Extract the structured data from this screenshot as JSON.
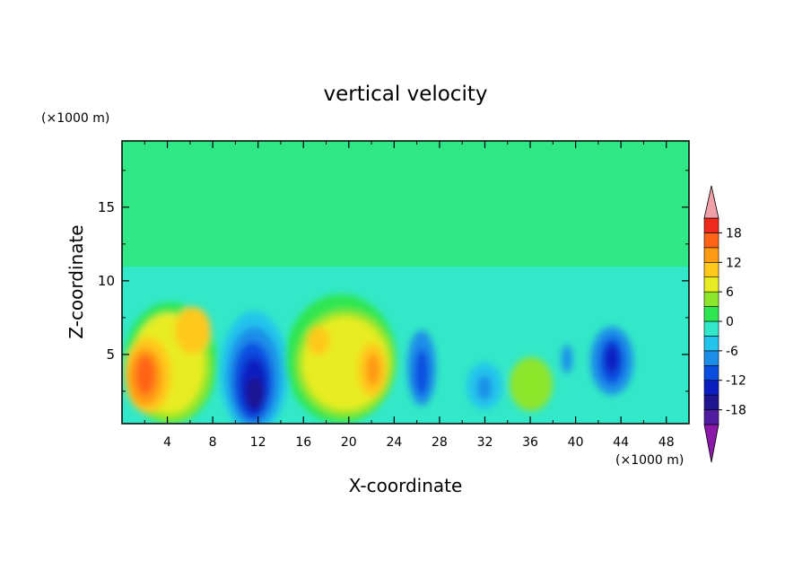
{
  "chart_data": {
    "type": "heatmap",
    "title": "vertical velocity",
    "xlabel": "X-coordinate",
    "ylabel": "Z-coordinate",
    "x_unit": "(×1000 m)",
    "y_unit": "(×1000 m)",
    "xlim": [
      0,
      50
    ],
    "ylim": [
      0.3,
      19.5
    ],
    "x_ticks": [
      4,
      8,
      12,
      16,
      20,
      24,
      28,
      32,
      36,
      40,
      44,
      48
    ],
    "y_ticks": [
      5,
      10,
      15
    ],
    "colorbar": {
      "levels": [
        -21,
        -18,
        -15,
        -12,
        -9,
        -6,
        -3,
        0,
        3,
        6,
        9,
        12,
        15,
        18,
        21
      ],
      "tick_labels": [
        "-18",
        "-12",
        "-6",
        "0",
        "6",
        "12",
        "18"
      ],
      "tick_values": [
        -18,
        -12,
        -6,
        0,
        6,
        12,
        18
      ],
      "colors": [
        "#8b1aa8",
        "#4f1ca0",
        "#1f1590",
        "#0a1ec0",
        "#0a4ee0",
        "#1c8ee8",
        "#22c4ec",
        "#33e8c8",
        "#2ee650",
        "#8ee62c",
        "#e8ec22",
        "#ffc81a",
        "#ff9a14",
        "#ff6418",
        "#ee2a1c",
        "#f0a0a8"
      ],
      "extend": "both"
    },
    "features": [
      {
        "x": 2.2,
        "z": 4.0,
        "value": 15
      },
      {
        "x": 5.5,
        "z": 6.3,
        "value": 8
      },
      {
        "x": 11.5,
        "z": 3.0,
        "value": -17
      },
      {
        "x": 10.5,
        "z": 5.8,
        "value": -12
      },
      {
        "x": 17.5,
        "z": 5.0,
        "value": 6
      },
      {
        "x": 22.0,
        "z": 3.8,
        "value": 12
      },
      {
        "x": 26.0,
        "z": 3.2,
        "value": -11
      },
      {
        "x": 31.8,
        "z": 2.8,
        "value": -9
      },
      {
        "x": 36.0,
        "z": 3.5,
        "value": 3
      },
      {
        "x": 43.2,
        "z": 4.2,
        "value": -13
      },
      {
        "x": 39.0,
        "z": 4.5,
        "value": -8
      }
    ]
  }
}
